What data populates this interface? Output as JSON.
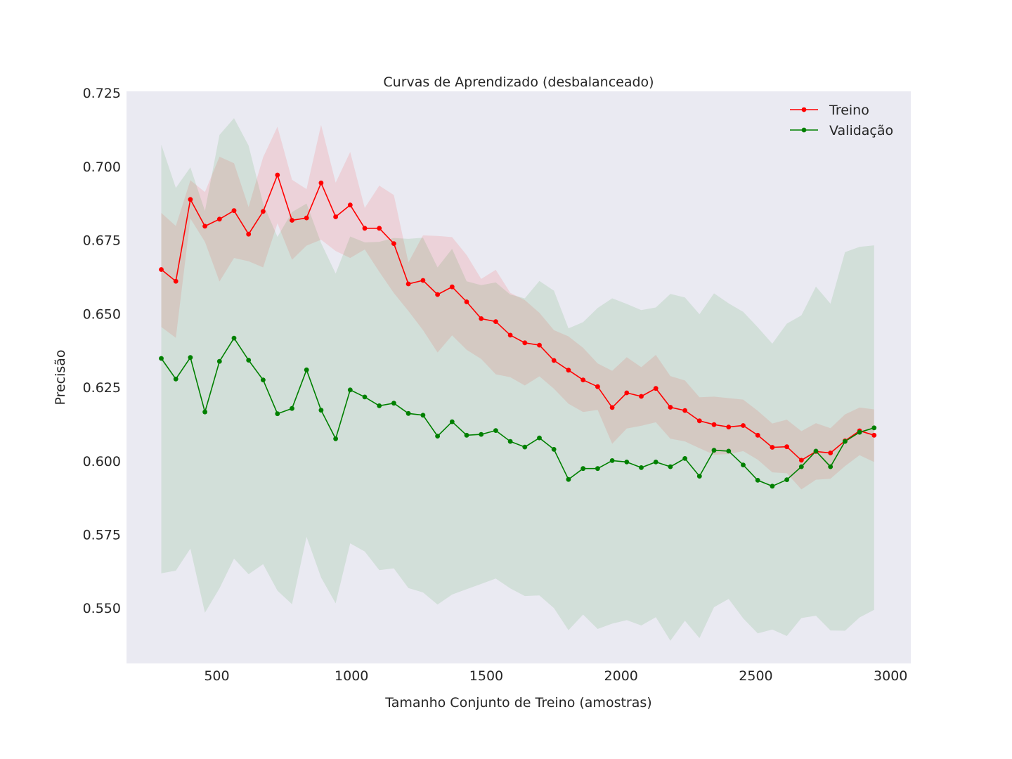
{
  "chart_data": {
    "type": "line",
    "title": "Curvas de Aprendizado (desbalanceado)",
    "xlabel": "Tamanho Conjunto de Treino (amostras)",
    "ylabel": "Precisão",
    "xlim": [
      165,
      3075
    ],
    "ylim": [
      0.5312,
      0.7255
    ],
    "xticks": [
      500,
      1000,
      1500,
      2000,
      2500,
      3000
    ],
    "xtick_labels": [
      "500",
      "1000",
      "1500",
      "2000",
      "2500",
      "3000"
    ],
    "yticks": [
      0.55,
      0.575,
      0.6,
      0.625,
      0.65,
      0.675,
      0.7,
      0.725
    ],
    "ytick_labels": [
      "0.550",
      "0.575",
      "0.600",
      "0.625",
      "0.650",
      "0.675",
      "0.700",
      "0.725"
    ],
    "grid": false,
    "legend_position": "top-right",
    "background_color": "#eaeaf2",
    "x": [
      294,
      348,
      402,
      456,
      510,
      564,
      618,
      672,
      725,
      779,
      833,
      887,
      941,
      995,
      1049,
      1103,
      1157,
      1211,
      1265,
      1319,
      1373,
      1427,
      1481,
      1535,
      1589,
      1643,
      1697,
      1751,
      1805,
      1859,
      1913,
      1967,
      2021,
      2075,
      2129,
      2183,
      2237,
      2291,
      2345,
      2399,
      2453,
      2507,
      2561,
      2615,
      2669,
      2723,
      2777,
      2831,
      2885,
      2939
    ],
    "series": [
      {
        "name": "Treino",
        "color": "#ff0000",
        "band_color": "#ff0000",
        "values": [
          0.665,
          0.661,
          0.6888,
          0.6797,
          0.6821,
          0.685,
          0.677,
          0.6847,
          0.6971,
          0.6817,
          0.6825,
          0.6944,
          0.6829,
          0.6869,
          0.679,
          0.679,
          0.6738,
          0.6601,
          0.6613,
          0.6565,
          0.6591,
          0.654,
          0.6483,
          0.6473,
          0.6427,
          0.6401,
          0.6393,
          0.6341,
          0.6308,
          0.6275,
          0.6252,
          0.6181,
          0.6231,
          0.6219,
          0.6246,
          0.6182,
          0.6171,
          0.6136,
          0.6123,
          0.6115,
          0.612,
          0.6087,
          0.6046,
          0.6048,
          0.6002,
          0.6032,
          0.6027,
          0.6068,
          0.6102,
          0.6087
        ],
        "lower": [
          0.6455,
          0.6418,
          0.6823,
          0.6744,
          0.6609,
          0.6689,
          0.6678,
          0.6657,
          0.6807,
          0.6683,
          0.6731,
          0.6751,
          0.6713,
          0.6689,
          0.6718,
          0.6642,
          0.657,
          0.6509,
          0.6444,
          0.6368,
          0.6426,
          0.6377,
          0.6346,
          0.6294,
          0.6284,
          0.6256,
          0.6287,
          0.6245,
          0.6194,
          0.6166,
          0.6173,
          0.6058,
          0.611,
          0.6119,
          0.6131,
          0.6075,
          0.6066,
          0.6043,
          0.6021,
          0.6023,
          0.6033,
          0.6004,
          0.5961,
          0.5958,
          0.5903,
          0.5936,
          0.5939,
          0.5982,
          0.6019,
          0.5996
        ],
        "upper": [
          0.6842,
          0.6798,
          0.6953,
          0.6913,
          0.7033,
          0.7011,
          0.6862,
          0.7031,
          0.7135,
          0.6955,
          0.6923,
          0.7141,
          0.6945,
          0.7049,
          0.6859,
          0.6935,
          0.6903,
          0.6674,
          0.6766,
          0.6764,
          0.676,
          0.6699,
          0.6618,
          0.6649,
          0.6571,
          0.6546,
          0.6503,
          0.6444,
          0.6423,
          0.6384,
          0.6331,
          0.6306,
          0.6352,
          0.6318,
          0.636,
          0.6288,
          0.6273,
          0.6216,
          0.6218,
          0.6213,
          0.6208,
          0.617,
          0.6127,
          0.614,
          0.6101,
          0.6128,
          0.6111,
          0.6158,
          0.6181,
          0.6175
        ]
      },
      {
        "name": "Validação",
        "color": "#008000",
        "band_color": "#008000",
        "values": [
          0.6348,
          0.6278,
          0.6351,
          0.6166,
          0.6338,
          0.6417,
          0.6342,
          0.6275,
          0.616,
          0.6178,
          0.6309,
          0.6172,
          0.6075,
          0.6241,
          0.6217,
          0.6187,
          0.6196,
          0.6161,
          0.6155,
          0.6084,
          0.6133,
          0.6087,
          0.609,
          0.6103,
          0.6066,
          0.6047,
          0.6078,
          0.6039,
          0.5937,
          0.5974,
          0.5974,
          0.6001,
          0.5996,
          0.5977,
          0.5996,
          0.598,
          0.6008,
          0.5948,
          0.6036,
          0.6033,
          0.5986,
          0.5934,
          0.5914,
          0.5936,
          0.598,
          0.6033,
          0.598,
          0.6066,
          0.6097,
          0.6112
        ],
        "lower": [
          0.5618,
          0.5627,
          0.5702,
          0.5484,
          0.5567,
          0.5668,
          0.5615,
          0.5649,
          0.5559,
          0.5513,
          0.5742,
          0.5604,
          0.5516,
          0.572,
          0.5692,
          0.5629,
          0.5635,
          0.5568,
          0.5553,
          0.5512,
          0.5546,
          0.5564,
          0.5582,
          0.56,
          0.5567,
          0.5541,
          0.5543,
          0.55,
          0.5425,
          0.5478,
          0.5429,
          0.5447,
          0.5459,
          0.5441,
          0.5469,
          0.5389,
          0.5457,
          0.5398,
          0.5503,
          0.5531,
          0.5465,
          0.5414,
          0.5427,
          0.5405,
          0.5466,
          0.5474,
          0.5424,
          0.5423,
          0.5468,
          0.5494
        ],
        "upper": [
          0.7074,
          0.6927,
          0.6997,
          0.6849,
          0.7107,
          0.7164,
          0.7071,
          0.6874,
          0.6761,
          0.6845,
          0.6874,
          0.674,
          0.6636,
          0.6762,
          0.6742,
          0.6744,
          0.6757,
          0.6754,
          0.6758,
          0.6657,
          0.672,
          0.661,
          0.6597,
          0.6606,
          0.6565,
          0.6552,
          0.6611,
          0.6578,
          0.645,
          0.6471,
          0.6519,
          0.6552,
          0.6533,
          0.6512,
          0.6521,
          0.6567,
          0.6555,
          0.6498,
          0.6569,
          0.6535,
          0.6506,
          0.6454,
          0.6398,
          0.6466,
          0.6494,
          0.6592,
          0.6534,
          0.6709,
          0.6727,
          0.6732
        ]
      }
    ]
  }
}
